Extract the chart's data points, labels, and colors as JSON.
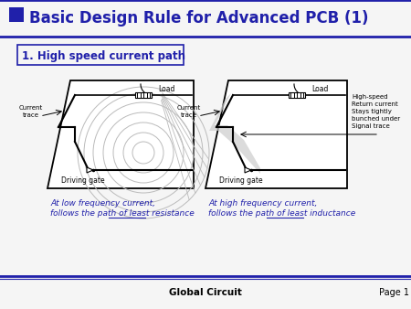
{
  "title": "Basic Design Rule for Advanced PCB (1)",
  "subtitle": "1. High speed current path",
  "header_bg": "#2020aa",
  "body_bg": "#f5f5f5",
  "blue_color": "#2020aa",
  "dark_blue": "#2020aa",
  "footer_text": "Global Circuit",
  "page_text": "Page 1",
  "left_caption_line1": "At low frequency current,",
  "left_caption_line2": "follows the path of least ",
  "left_caption_underline": "resistance",
  "right_caption_line1": "At high frequency current,",
  "right_caption_line2": "follows the path of least ",
  "right_caption_underline": "inductance",
  "circle_color": "#bbbbbb",
  "trace_color": "#111111"
}
